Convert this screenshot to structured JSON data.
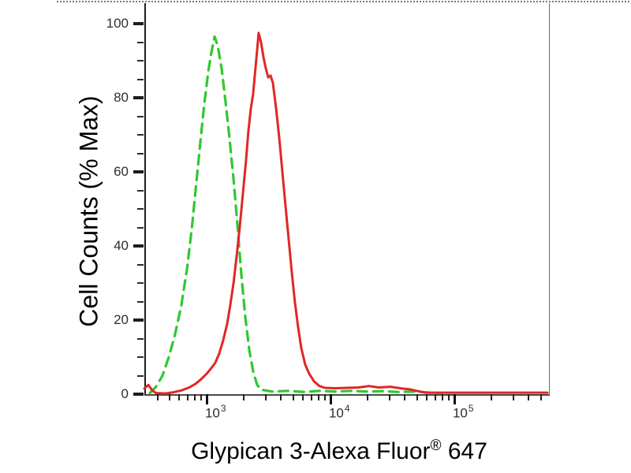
{
  "chart_data": {
    "type": "line",
    "subtype": "flow-cytometry-histogram",
    "title": "",
    "xlabel": "Glypican 3-Alexa Fluor® 647",
    "xlabel_parts": {
      "main": "Glypican 3-Alexa Fluor",
      "sup": "®",
      "suffix": " 647"
    },
    "ylabel": "Cell Counts (% Max)",
    "x_scale": "log",
    "xlim": [
      314,
      565000
    ],
    "ylim": [
      0,
      105
    ],
    "grid": false,
    "legend": "none",
    "x_major_ticks": [
      {
        "value": 1000,
        "base": "10",
        "exp": "3"
      },
      {
        "value": 10000,
        "base": "10",
        "exp": "4"
      },
      {
        "value": 100000,
        "base": "10",
        "exp": "5"
      }
    ],
    "x_minor_tick_multiples": [
      2,
      3,
      4,
      5,
      6,
      7,
      8,
      9
    ],
    "y_major_ticks": [
      0,
      20,
      40,
      60,
      80,
      100
    ],
    "y_minor_step": 5,
    "series": [
      {
        "name": "green-dashed-control",
        "color": "#2dc92d",
        "style": "dashed",
        "points": [
          [
            348,
            0.3
          ],
          [
            390,
            2
          ],
          [
            440,
            5
          ],
          [
            495,
            10
          ],
          [
            555,
            16
          ],
          [
            625,
            24
          ],
          [
            695,
            34
          ],
          [
            760,
            45
          ],
          [
            825,
            57
          ],
          [
            890,
            68
          ],
          [
            955,
            78
          ],
          [
            1030,
            87
          ],
          [
            1090,
            92
          ],
          [
            1160,
            96.5
          ],
          [
            1230,
            94
          ],
          [
            1320,
            88
          ],
          [
            1420,
            79
          ],
          [
            1530,
            69
          ],
          [
            1650,
            58
          ],
          [
            1770,
            46
          ],
          [
            1900,
            33
          ],
          [
            2050,
            21
          ],
          [
            2210,
            12
          ],
          [
            2380,
            6
          ],
          [
            2560,
            2.5
          ],
          [
            2750,
            1.2
          ],
          [
            3380,
            0.7
          ],
          [
            4530,
            0.9
          ],
          [
            6070,
            0.6
          ],
          [
            8150,
            0.9
          ],
          [
            10900,
            0.7
          ],
          [
            14700,
            0.9
          ],
          [
            19600,
            0.7
          ],
          [
            26300,
            0.8
          ],
          [
            35300,
            0.6
          ],
          [
            47300,
            0.7
          ],
          [
            63500,
            0.4
          ],
          [
            79000,
            0.3
          ]
        ]
      },
      {
        "name": "red-solid-stained",
        "color": "#e12626",
        "style": "solid",
        "points": [
          [
            314,
            1.5
          ],
          [
            338,
            2.5
          ],
          [
            364,
            1
          ],
          [
            390,
            0.3
          ],
          [
            465,
            0.2
          ],
          [
            540,
            0.5
          ],
          [
            625,
            1
          ],
          [
            725,
            1.8
          ],
          [
            815,
            2.8
          ],
          [
            900,
            4
          ],
          [
            1000,
            5.5
          ],
          [
            1090,
            7
          ],
          [
            1175,
            8.5
          ],
          [
            1265,
            11
          ],
          [
            1360,
            14.5
          ],
          [
            1465,
            19
          ],
          [
            1550,
            24
          ],
          [
            1650,
            30
          ],
          [
            1745,
            37
          ],
          [
            1850,
            45
          ],
          [
            1960,
            54
          ],
          [
            2080,
            63
          ],
          [
            2175,
            71
          ],
          [
            2275,
            77
          ],
          [
            2375,
            81
          ],
          [
            2480,
            88
          ],
          [
            2560,
            93
          ],
          [
            2630,
            97.5
          ],
          [
            2750,
            95
          ],
          [
            2875,
            91
          ],
          [
            3000,
            88
          ],
          [
            3140,
            85.5
          ],
          [
            3280,
            86
          ],
          [
            3430,
            84
          ],
          [
            3640,
            77
          ],
          [
            3860,
            69
          ],
          [
            4090,
            60
          ],
          [
            4330,
            51
          ],
          [
            4590,
            42
          ],
          [
            4870,
            33
          ],
          [
            5160,
            25
          ],
          [
            5480,
            18
          ],
          [
            5810,
            12.5
          ],
          [
            6250,
            8
          ],
          [
            6730,
            5.5
          ],
          [
            7350,
            3.5
          ],
          [
            8150,
            2.2
          ],
          [
            9000,
            1.7
          ],
          [
            10900,
            1.6
          ],
          [
            13600,
            1.7
          ],
          [
            16900,
            1.8
          ],
          [
            20500,
            2.2
          ],
          [
            24500,
            1.8
          ],
          [
            30500,
            2
          ],
          [
            38000,
            1.5
          ],
          [
            44000,
            1.3
          ],
          [
            51000,
            0.8
          ],
          [
            59000,
            0.4
          ],
          [
            79000,
            0.4
          ],
          [
            142000,
            0.4
          ],
          [
            296000,
            0.4
          ],
          [
            565000,
            0.4
          ]
        ]
      }
    ]
  }
}
